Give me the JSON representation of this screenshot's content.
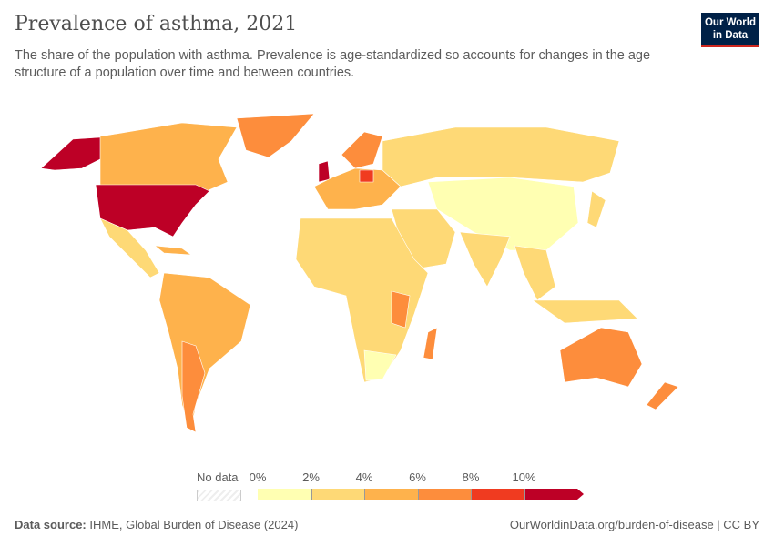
{
  "header": {
    "title": "Prevalence of asthma, 2021",
    "subtitle": "The share of the population with asthma. Prevalence is age-standardized so accounts for changes in the age structure of a population over time and between countries.",
    "logo": "Our World in Data"
  },
  "legend": {
    "no_data": "No data",
    "ticks": [
      "0%",
      "2%",
      "4%",
      "6%",
      "8%",
      "10%"
    ],
    "colors": [
      "#ffffb2",
      "#fed976",
      "#feb24c",
      "#fd8d3c",
      "#f03b20",
      "#bd0026"
    ],
    "no_data_color": "#eeeeee"
  },
  "footer": {
    "source_label": "Data source:",
    "source": "IHME, Global Burden of Disease (2024)",
    "link": "OurWorldinData.org/burden-of-disease | CC BY"
  }
}
